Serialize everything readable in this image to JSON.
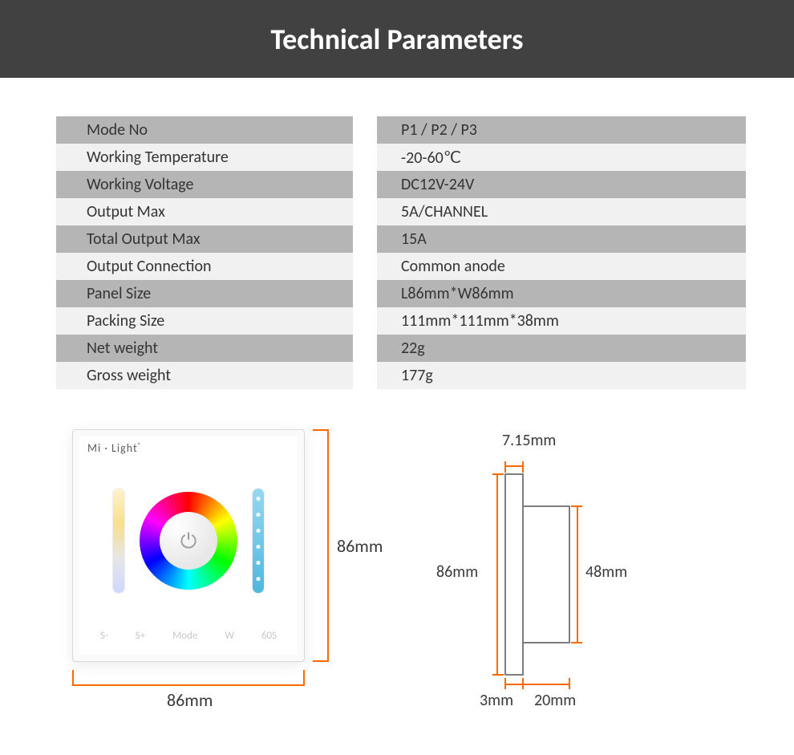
{
  "header": {
    "title": "Technical Parameters"
  },
  "table": {
    "rows": [
      {
        "label": "Mode No",
        "value": "P1 / P2 / P3"
      },
      {
        "label": "Working Temperature",
        "value": "-20-60℃"
      },
      {
        "label": "Working Voltage",
        "value": "DC12V-24V"
      },
      {
        "label": "Output Max",
        "value": "5A/CHANNEL"
      },
      {
        "label": "Total Output Max",
        "value": "15A"
      },
      {
        "label": "Output Connection",
        "value": "Common anode"
      },
      {
        "label": "Panel Size",
        "value": "L86mm*W86mm"
      },
      {
        "label": "Packing Size",
        "value": "111mm*111mm*38mm"
      },
      {
        "label": "Net weight",
        "value": "22g"
      },
      {
        "label": "Gross weight",
        "value": "177g"
      }
    ],
    "colors": {
      "dark_row": "#b5b5b5",
      "light_row": "#f1f1f1",
      "text": "#343434"
    }
  },
  "panel": {
    "brand": "Mi · Light",
    "buttons": [
      "S-",
      "S+",
      "Mode",
      "W",
      "60S"
    ]
  },
  "dimensions": {
    "front_width": "86mm",
    "front_height": "86mm",
    "side_height": "86mm",
    "side_front_thickness": "7.15mm",
    "side_back_depth": "48mm",
    "side_lip": "3mm",
    "side_back_width": "20mm",
    "line_color": "#ff6a00"
  },
  "style": {
    "header_bg": "#414141",
    "header_text": "#ffffff",
    "header_fontsize": 36,
    "body_font": "Calibri"
  }
}
